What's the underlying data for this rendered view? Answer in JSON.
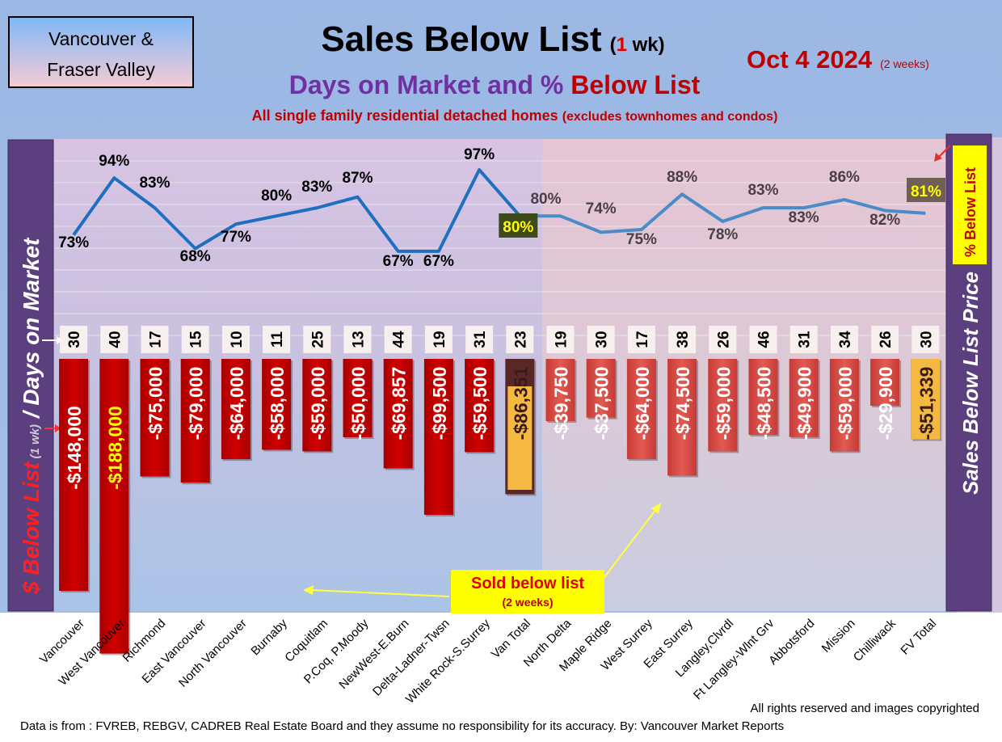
{
  "header": {
    "region_line1": "Vancouver &",
    "region_line2": "Fraser Valley",
    "title_main": "Sales Below List",
    "title_paren_open": "(",
    "title_num": "1",
    "title_paren_close": " wk)",
    "subtitle_part1": "Days on Market and % ",
    "subtitle_part2": "Below List",
    "description_main": "All single family residential detached homes ",
    "description_paren": "(excludes townhomes and condos)",
    "date": "Oct 4  2024",
    "date_note": "(2 weeks)"
  },
  "side_labels": {
    "left_part1": "$ Below List",
    "left_part2": " (1 wk)",
    "left_part3": " / Days on Market",
    "right_main": "Sales Below List Price",
    "right_pct": "% Below List"
  },
  "annotations": {
    "callout_line1": "Sold below list",
    "callout_line2": "(2 weeks)"
  },
  "footer": {
    "rights": "All rights reserved and  images copyrighted",
    "source": "Data is from : FVREB, REBGV, CADREB Real Estate Board and they assume no responsibility for its accuracy. By: Vancouver Market Reports"
  },
  "colors": {
    "background": "#9db8e2",
    "bar_red": "#c00000",
    "bar_red_light": "#d9413c",
    "total_dark": "#5a2727",
    "total_gold": "#f4b942",
    "line_blue": "#1f6fc1",
    "line_blue_light": "#4a8bc8",
    "side_panel": "#5c3f7e",
    "pct_box": "#ffff00"
  },
  "chart_data": {
    "type": "bar",
    "categories": [
      "Vancouver",
      "West Vancouver",
      "Richmond",
      "East Vancouver",
      "North Vancouver",
      "Burnaby",
      "Coquitlam",
      "P.Coq, P.Moody",
      "NewWest-E.Burn",
      "Delta-Ladner-Twsn",
      "White Rock-S.Surrey",
      "Van Total",
      "North Delta",
      "Maple Ridge",
      "West Surrey",
      "East Surrey",
      "Langley,Clvrdl",
      "Ft Langley-Wlnt Grv",
      "Abbotsford",
      "Mission",
      "Chilliwack",
      "FV Total"
    ],
    "series": [
      {
        "values": [
          -148000,
          -188000,
          -75000,
          -79000,
          -64000,
          -58000,
          -59000,
          -50000,
          -69857,
          -99500,
          -59500,
          -86351,
          -39750,
          -37500,
          -64000,
          -74500,
          -59000,
          -48500,
          -49900,
          -59000,
          -29900,
          -51339
        ],
        "labels": [
          "-$148,000",
          "-$188,000",
          "-$75,000",
          "-$79,000",
          "-$64,000",
          "-$58,000",
          "-$59,000",
          "-$50,000",
          "-$69,857",
          "-$99,500",
          "-$59,500",
          "-$86,351",
          "-$39,750",
          "-$37,500",
          "-$64,000",
          "-$74,500",
          "-$59,000",
          "-$48,500",
          "-$49,900",
          "-$59,000",
          "-$29,900",
          "-$51,339"
        ]
      },
      {
        "values": [
          30,
          40,
          17,
          15,
          10,
          11,
          25,
          13,
          44,
          19,
          31,
          23,
          19,
          30,
          17,
          38,
          26,
          46,
          31,
          34,
          26,
          30
        ],
        "labels": [
          "30",
          "40",
          "17",
          "15",
          "10",
          "11",
          "25",
          "13",
          "44",
          "19",
          "31",
          "23",
          "19",
          "30",
          "17",
          "38",
          "26",
          "46",
          "31",
          "34",
          "26",
          "30"
        ]
      },
      {
        "values": [
          73,
          94,
          83,
          68,
          77,
          80,
          83,
          87,
          67,
          67,
          97,
          80,
          80,
          74,
          75,
          88,
          78,
          83,
          83,
          86,
          82,
          81
        ],
        "labels": [
          "73%",
          "94%",
          "83%",
          "68%",
          "77%",
          "80%",
          "83%",
          "87%",
          "67%",
          "67%",
          "97%",
          "80%",
          "80%",
          "74%",
          "75%",
          "88%",
          "78%",
          "83%",
          "83%",
          "86%",
          "82%",
          "81%"
        ]
      }
    ],
    "grid": true
  }
}
